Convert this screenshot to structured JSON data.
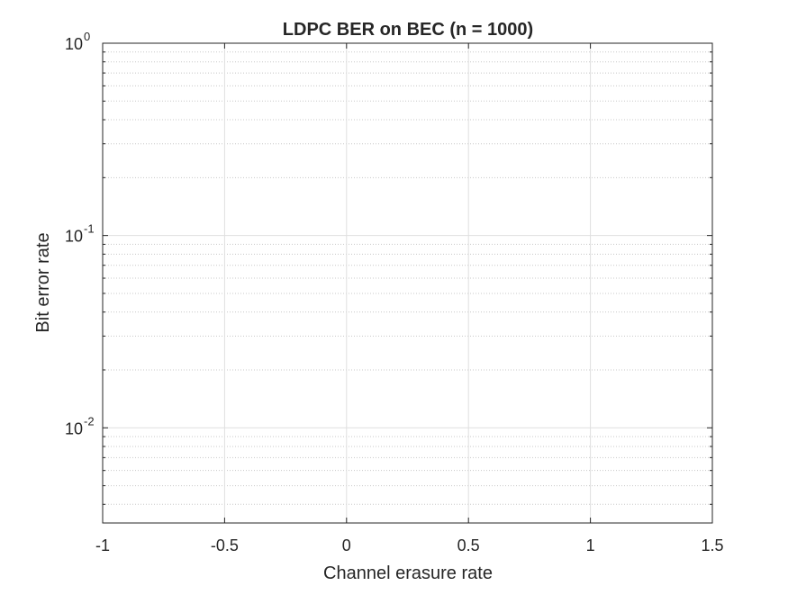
{
  "chart_data": {
    "type": "line",
    "title": "LDPC BER on BEC (n = 1000)",
    "xlabel": "Channel erasure rate",
    "ylabel": "Bit error rate",
    "xlim": [
      -1,
      1.5
    ],
    "ylim": [
      0.0032,
      1
    ],
    "yscale": "log",
    "grid": true,
    "minor_grid": true,
    "x_ticks": [
      -1,
      -0.5,
      0,
      0.5,
      1,
      1.5
    ],
    "x_tick_labels": [
      "-1",
      "-0.5",
      "0",
      "0.5",
      "1",
      "1.5"
    ],
    "y_ticks": [
      1,
      0.1,
      0.01
    ],
    "y_tick_labels": [
      {
        "base": "10",
        "exp": "0"
      },
      {
        "base": "10",
        "exp": "-1"
      },
      {
        "base": "10",
        "exp": "-2"
      }
    ],
    "series": []
  }
}
